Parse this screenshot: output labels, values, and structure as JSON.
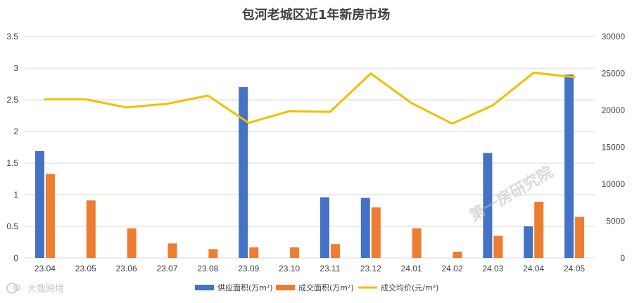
{
  "chart_data": {
    "type": "bar",
    "title": "包河老城区近1年新房市场",
    "categories": [
      "23.04",
      "23.05",
      "23.06",
      "23.07",
      "23.08",
      "23.09",
      "23.10",
      "23.11",
      "23.12",
      "24.01",
      "24.02",
      "24.03",
      "24.04",
      "24.05"
    ],
    "series": [
      {
        "name": "供应面积(万m²)",
        "type": "bar",
        "axis": "left",
        "color": "#4472C4",
        "values": [
          1.69,
          0,
          0,
          0,
          0,
          2.7,
          0,
          0.96,
          0.95,
          0,
          0,
          1.66,
          0.5,
          2.9
        ]
      },
      {
        "name": "成交面积(万m²)",
        "type": "bar",
        "axis": "left",
        "color": "#ED7D31",
        "values": [
          1.33,
          0.91,
          0.47,
          0.23,
          0.14,
          0.17,
          0.17,
          0.22,
          0.8,
          0.47,
          0.1,
          0.35,
          0.89,
          0.65
        ]
      },
      {
        "name": "成交均价(元/m²)",
        "type": "line",
        "axis": "right",
        "color": "#F0C000",
        "values": [
          21500,
          21500,
          20400,
          20900,
          22000,
          18300,
          19900,
          19800,
          25000,
          21000,
          18200,
          20700,
          25100,
          24500
        ]
      }
    ],
    "y_left": {
      "min": 0,
      "max": 3.5,
      "ticks": [
        "0",
        "0.5",
        "1",
        "1.5",
        "2",
        "2.5",
        "3",
        "3.5"
      ]
    },
    "y_right": {
      "min": 0,
      "max": 30000,
      "ticks": [
        "0",
        "5000",
        "10000",
        "15000",
        "20000",
        "25000",
        "30000"
      ]
    },
    "grid": true,
    "legend_position": "bottom"
  },
  "watermark": "第一房研究院",
  "logo": {
    "text": "大数跨境"
  }
}
